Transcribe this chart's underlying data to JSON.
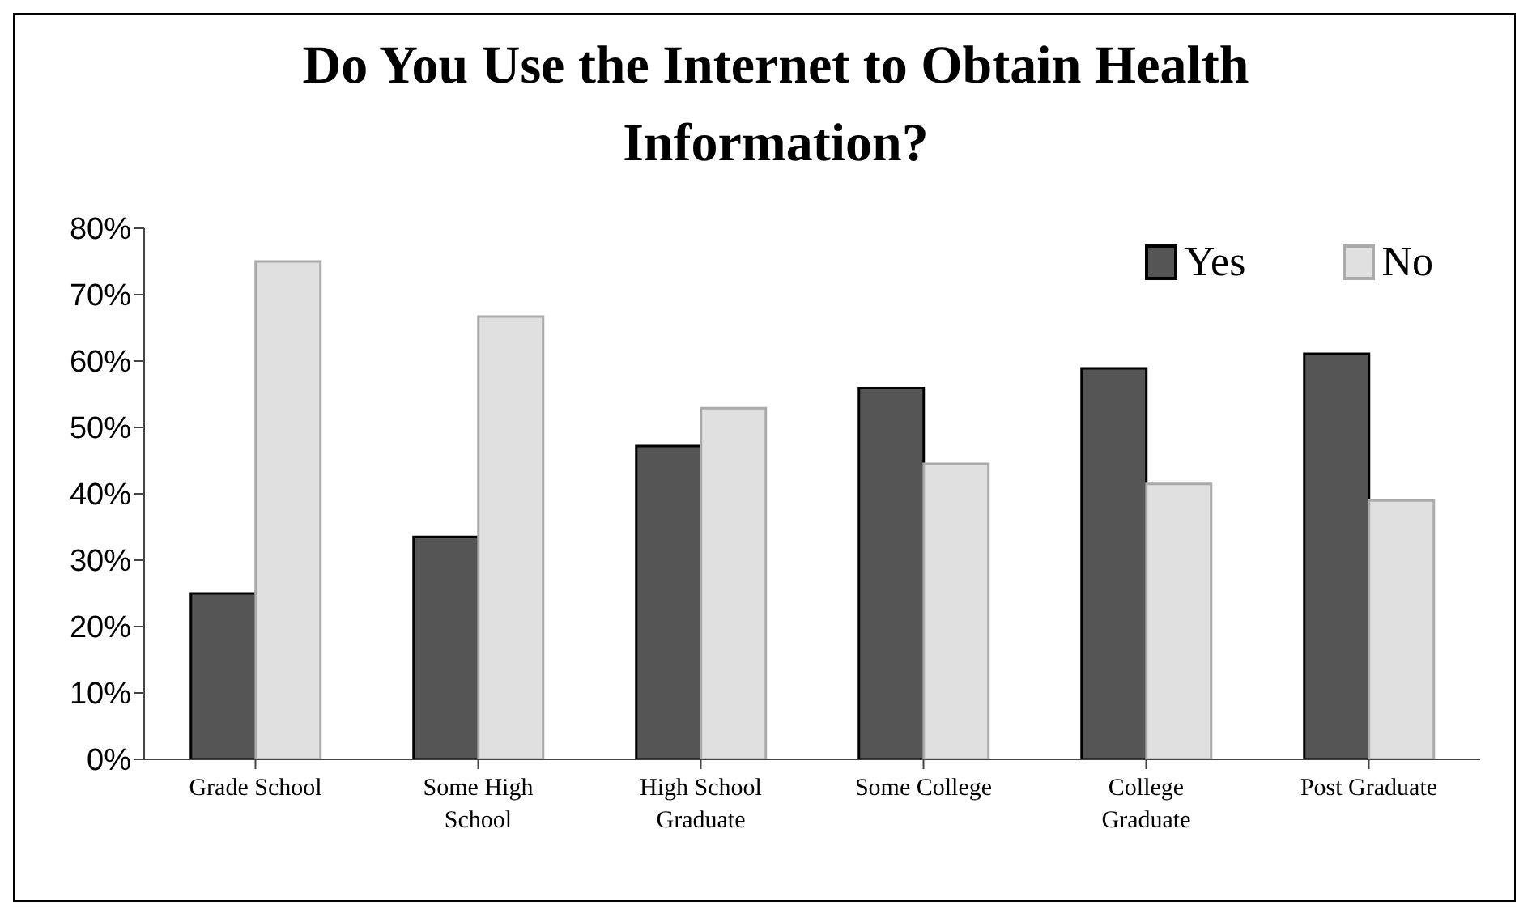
{
  "chart_data": {
    "type": "bar",
    "title": "Do You Use the Internet to Obtain Health Information?",
    "categories": [
      "Grade School",
      "Some High School",
      "High School Graduate",
      "Some College",
      "College Graduate",
      "Post Graduate"
    ],
    "series": [
      {
        "name": "Yes",
        "color": "#555555",
        "values": [
          25,
          33.5,
          47.2,
          55.9,
          58.9,
          61.1
        ]
      },
      {
        "name": "No",
        "color": "#e0e0e0",
        "values": [
          75,
          66.7,
          52.9,
          44.5,
          41.5,
          39.0
        ]
      }
    ],
    "ylim": [
      0,
      80
    ],
    "yticks": [
      {
        "value": 0,
        "label": "0%"
      },
      {
        "value": 10,
        "label": "10%"
      },
      {
        "value": 20,
        "label": "20%"
      },
      {
        "value": 30,
        "label": "30%"
      },
      {
        "value": 40,
        "label": "40%"
      },
      {
        "value": 50,
        "label": "50%"
      },
      {
        "value": 60,
        "label": "60%"
      },
      {
        "value": 70,
        "label": "70%"
      },
      {
        "value": 80,
        "label": "80%"
      }
    ],
    "grid": false,
    "legend": "top right"
  }
}
